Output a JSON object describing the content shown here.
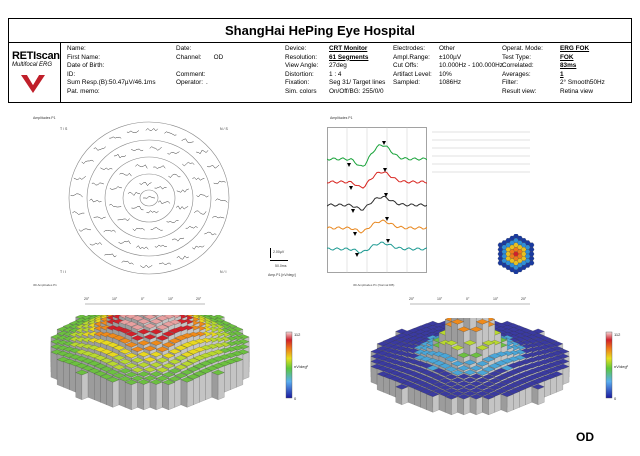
{
  "title": "ShangHai HePing Eye Hospital",
  "logo": {
    "name": "RETIscan",
    "subtitle": "Multifocal ERG"
  },
  "patient": {
    "labels": [
      "Name:",
      "First Name:",
      "Date of Birth:",
      "ID:",
      "Sum Resp.(B):50.47µV/46.1ms",
      "Pat. memo:"
    ],
    "date_label": "Date:",
    "channel_label": "Channel:",
    "channel_value": "OD",
    "comment_label": "Comment:",
    "operator_label": "Operator:",
    "operator_value": "."
  },
  "device": {
    "labels": [
      "Device:",
      "Resolution:",
      "View Angle:",
      "Distortion:",
      "Fixation:",
      "Sim. colors"
    ],
    "values": [
      "CRT Monitor",
      "61 Segments",
      "27deg",
      "1 : 4",
      "Seg 31/ Target lines",
      "On/Off/BG: 255/0/0"
    ]
  },
  "recording": {
    "labels": [
      "Electrodes:",
      "Ampl.Range:",
      "Cut Offs:",
      "Artifact Level:",
      "Sampled:"
    ],
    "values": [
      "Other",
      "±100µV",
      "10.000Hz - 100.000Hz",
      "10%",
      "1086Hz"
    ]
  },
  "mode": {
    "labels": [
      "Operat. Mode:",
      "Test Type:",
      "Correlated:",
      "Averages:",
      "Filter:",
      "Result view:"
    ],
    "values": [
      "ERG FOK",
      "FOK",
      "83ms",
      "1",
      "2° Smooth50Hz",
      "Retina view"
    ]
  },
  "panels": {
    "trace_array_title": "Amplitudes P1",
    "ring_traces_title": "Amplitudes P1",
    "plot3d_left_title": "3D Amplitudes P1",
    "plot3d_right_title": "3D Amplitudes P1 (Normal DB)",
    "corner_labels": [
      "T / S",
      "N / S",
      "T / I",
      "N / I"
    ],
    "scale_v": "2.00µV",
    "scale_t": "50.0ms",
    "amp_unit": "Amp.P1 [nV/deg²]",
    "axis_ticks": [
      "20°",
      "10°",
      "0°",
      "10°",
      "20°"
    ],
    "colorbar_max": "112",
    "colorbar_min": "0",
    "colorbar_unit": "nV/deg²",
    "eye": "OD"
  },
  "colors": {
    "trace_ring1": "#19a33a",
    "trace_ring2": "#d8241f",
    "trace_ring3": "#2b2b2b",
    "trace_ring4": "#e8871e",
    "trace_ring5": "#1d9a92"
  }
}
